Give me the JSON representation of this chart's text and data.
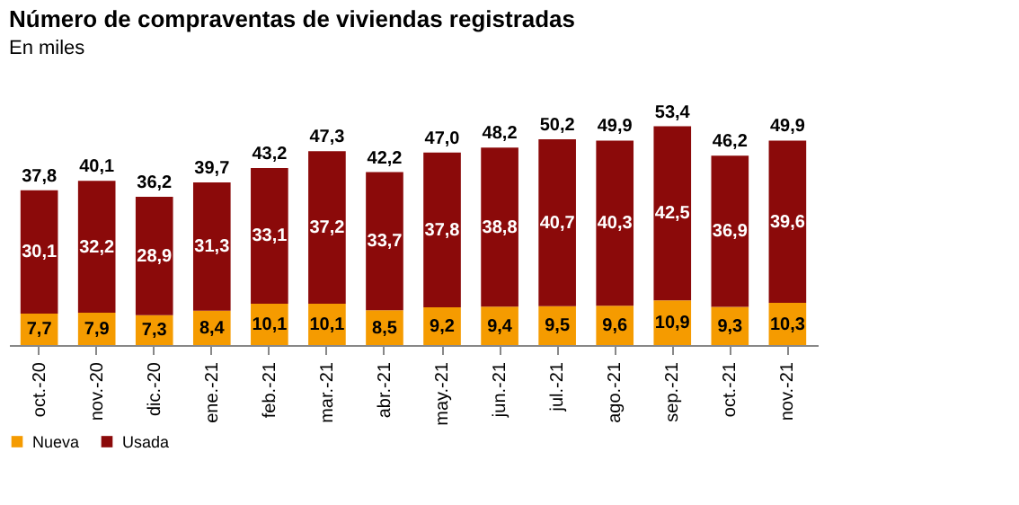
{
  "chart_data": {
    "type": "bar",
    "title": "Número de compraventas de viviendas registradas",
    "subtitle": "En miles",
    "categories": [
      "oct.-20",
      "nov.-20",
      "dic.-20",
      "ene.-21",
      "feb.-21",
      "mar.-21",
      "abr.-21",
      "may.-21",
      "jun.-21",
      "jul.-21",
      "ago.-21",
      "sep.-21",
      "oct.-21",
      "nov.-21"
    ],
    "series": [
      {
        "name": "Nueva",
        "color": "#f59b00",
        "values": [
          7.7,
          7.9,
          7.3,
          8.4,
          10.1,
          10.1,
          8.5,
          9.2,
          9.4,
          9.5,
          9.6,
          10.9,
          9.3,
          10.3
        ],
        "value_labels": [
          "7,7",
          "7,9",
          "7,3",
          "8,4",
          "10,1",
          "10,1",
          "8,5",
          "9,2",
          "9,4",
          "9,5",
          "9,6",
          "10,9",
          "9,3",
          "10,3"
        ]
      },
      {
        "name": "Usada",
        "color": "#8b0a0a",
        "values": [
          30.1,
          32.2,
          28.9,
          31.3,
          33.1,
          37.2,
          33.7,
          37.8,
          38.8,
          40.7,
          40.3,
          42.5,
          36.9,
          39.6
        ],
        "value_labels": [
          "30,1",
          "32,2",
          "28,9",
          "31,3",
          "33,1",
          "37,2",
          "33,7",
          "37,8",
          "38,8",
          "40,7",
          "40,3",
          "42,5",
          "36,9",
          "39,6"
        ]
      }
    ],
    "stacked": true,
    "totals": [
      "37,8",
      "40,1",
      "36,2",
      "39,7",
      "43,2",
      "47,3",
      "42,2",
      "47,0",
      "48,2",
      "50,2",
      "49,9",
      "53,4",
      "46,2",
      "49,9"
    ],
    "legend": "bottom left",
    "grid": false
  }
}
